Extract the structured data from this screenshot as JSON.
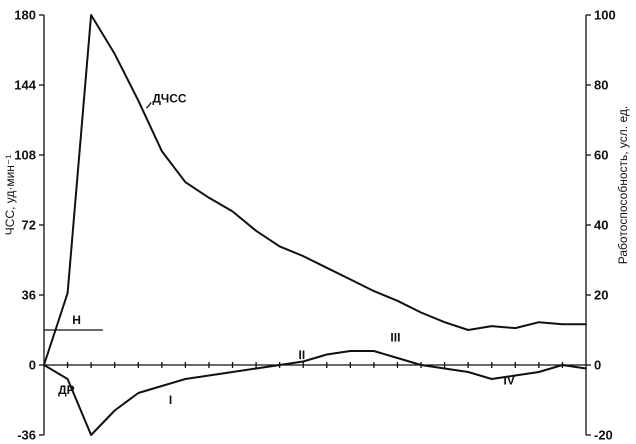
{
  "chart_data": {
    "type": "line",
    "title": "",
    "left_axis": {
      "label": "ЧСС, уд·мин⁻¹",
      "range": [
        -36,
        180
      ],
      "ticks": [
        180,
        144,
        108,
        72,
        36,
        0,
        -36
      ]
    },
    "right_axis": {
      "label": "Работоспособность, усл. ед.",
      "range": [
        -20,
        100
      ],
      "ticks": [
        100,
        80,
        60,
        40,
        20,
        0,
        -20
      ]
    },
    "x_axis": {
      "label": "",
      "range": [
        0,
        23
      ],
      "minor_tick_count": 23
    },
    "grid": false,
    "series": [
      {
        "name": "ДЧСС",
        "axis": "left",
        "points": [
          [
            0,
            0
          ],
          [
            1,
            37
          ],
          [
            2,
            180
          ],
          [
            3,
            160
          ],
          [
            4,
            136
          ],
          [
            5,
            110
          ],
          [
            6,
            94
          ],
          [
            7,
            86
          ],
          [
            8,
            79
          ],
          [
            9,
            69
          ],
          [
            10,
            61
          ],
          [
            11,
            56
          ],
          [
            12,
            50
          ],
          [
            13,
            44
          ],
          [
            14,
            38
          ],
          [
            15,
            33
          ],
          [
            16,
            27
          ],
          [
            17,
            22
          ],
          [
            18,
            18
          ],
          [
            19,
            20
          ],
          [
            20,
            19
          ],
          [
            21,
            22
          ],
          [
            22,
            21
          ],
          [
            23,
            21
          ]
        ]
      },
      {
        "name": "",
        "axis": "right",
        "points": [
          [
            0,
            0
          ],
          [
            1,
            -4
          ],
          [
            2,
            -20
          ],
          [
            3,
            -13
          ],
          [
            4,
            -8
          ],
          [
            5,
            -6
          ],
          [
            6,
            -4
          ],
          [
            7,
            -3
          ],
          [
            8,
            -2
          ],
          [
            9,
            -1
          ],
          [
            10,
            0
          ],
          [
            11,
            1
          ],
          [
            12,
            3
          ],
          [
            13,
            4
          ],
          [
            14,
            4
          ],
          [
            15,
            2
          ],
          [
            16,
            0
          ],
          [
            17,
            -1
          ],
          [
            18,
            -2
          ],
          [
            19,
            -4
          ],
          [
            20,
            -3
          ],
          [
            21,
            -2
          ],
          [
            22,
            0
          ],
          [
            23,
            -1
          ]
        ]
      }
    ],
    "baseline": {
      "name": "Н",
      "axis": "left",
      "value": 18,
      "x_range": [
        0,
        2.5
      ]
    },
    "annotations": [
      {
        "text": "ДЧСС",
        "x": 4.6,
        "y": 135,
        "axis": "left"
      },
      {
        "text": "ДР",
        "x": 0.6,
        "y": -15,
        "axis": "left"
      },
      {
        "text": "I",
        "x": 5.3,
        "y": -20,
        "axis": "left"
      },
      {
        "text": "II",
        "x": 10.8,
        "y": 3,
        "axis": "left"
      },
      {
        "text": "III",
        "x": 14.7,
        "y": 12,
        "axis": "left"
      },
      {
        "text": "IV",
        "x": 19.5,
        "y": -10,
        "axis": "left"
      },
      {
        "text": "Н",
        "x": 1.2,
        "y": 21,
        "axis": "left"
      }
    ]
  }
}
